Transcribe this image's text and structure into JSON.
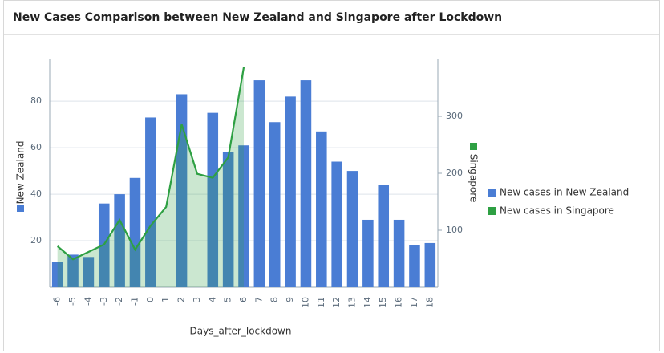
{
  "chart_data": {
    "type": "bar_line",
    "title": "New Cases Comparison between New Zealand and Singapore after Lockdown",
    "x_label": "Days_after_lockdown",
    "y_label": "New Zealand",
    "y2_label": "Singapore",
    "categories": [
      "-6",
      "-5",
      "-4",
      "-3",
      "-2",
      "-1",
      "0",
      "1",
      "2",
      "3",
      "4",
      "5",
      "6",
      "7",
      "8",
      "9",
      "10",
      "11",
      "12",
      "13",
      "14",
      "15",
      "16",
      "17",
      "18"
    ],
    "series": [
      {
        "name": "New cases in New Zealand",
        "color": "#4a7dd4",
        "type": "bar",
        "values": [
          11,
          14,
          13,
          36,
          40,
          47,
          73,
          null,
          83,
          null,
          75,
          58,
          61,
          89,
          71,
          82,
          89,
          67,
          54,
          50,
          29,
          44,
          29,
          18,
          19
        ]
      },
      {
        "name": "New cases in Singapore",
        "color": "#2ea043",
        "type": "area",
        "axis": "y2",
        "values": [
          72,
          49,
          62,
          75,
          118,
          66,
          108,
          141,
          286,
          199,
          192,
          228,
          386,
          null,
          null,
          null,
          null,
          null,
          null,
          null,
          null,
          null,
          null,
          null,
          null
        ]
      }
    ],
    "ylim": [
      0,
      98
    ],
    "yticks": [
      20,
      40,
      60,
      80
    ],
    "y2lim": [
      0,
      400
    ],
    "y2ticks": [
      100,
      200,
      300
    ],
    "grid": true,
    "legend": "right"
  }
}
